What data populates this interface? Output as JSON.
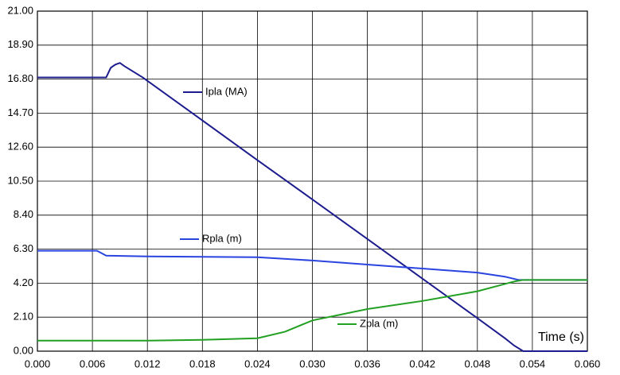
{
  "chart_data": {
    "type": "line",
    "xlabel": "Time (s)",
    "grid": true,
    "xlim": [
      0,
      0.06
    ],
    "ylim": [
      0,
      21
    ],
    "xticks": [
      {
        "value": 0,
        "label": "0.000"
      },
      {
        "value": 0.006,
        "label": "0.006"
      },
      {
        "value": 0.012,
        "label": "0.012"
      },
      {
        "value": 0.018,
        "label": "0.018"
      },
      {
        "value": 0.024,
        "label": "0.024"
      },
      {
        "value": 0.03,
        "label": "0.030"
      },
      {
        "value": 0.036,
        "label": "0.036"
      },
      {
        "value": 0.042,
        "label": "0.042"
      },
      {
        "value": 0.048,
        "label": "0.048"
      },
      {
        "value": 0.054,
        "label": "0.054"
      },
      {
        "value": 0.06,
        "label": "0.060"
      }
    ],
    "yticks": [
      {
        "value": 0,
        "label": "0.00"
      },
      {
        "value": 2.1,
        "label": "2.10"
      },
      {
        "value": 4.2,
        "label": "4.20"
      },
      {
        "value": 6.3,
        "label": "6.30"
      },
      {
        "value": 8.4,
        "label": "8.40"
      },
      {
        "value": 10.5,
        "label": "10.50"
      },
      {
        "value": 12.6,
        "label": "12.60"
      },
      {
        "value": 14.7,
        "label": "14.70"
      },
      {
        "value": 16.8,
        "label": "16.80"
      },
      {
        "value": 18.9,
        "label": "18.90"
      },
      {
        "value": 21,
        "label": "21.00"
      }
    ],
    "series": [
      {
        "name": "Ipla (MA)",
        "color": "#1c1c8e",
        "x": [
          0,
          0.0075,
          0.008,
          0.0085,
          0.009,
          0.0095,
          0.0115,
          0.018,
          0.024,
          0.03,
          0.036,
          0.042,
          0.048,
          0.051,
          0.052,
          0.053,
          0.06
        ],
        "values": [
          16.9,
          16.9,
          17.5,
          17.7,
          17.8,
          17.6,
          16.9,
          14.25,
          11.8,
          9.37,
          6.93,
          4.48,
          2.04,
          0.8,
          0.35,
          0,
          0
        ]
      },
      {
        "name": "Rpla (m)",
        "color": "#2a44e0",
        "x": [
          0,
          0.0065,
          0.0075,
          0.012,
          0.024,
          0.03,
          0.036,
          0.042,
          0.048,
          0.051,
          0.0525,
          0.06
        ],
        "values": [
          6.2,
          6.2,
          5.9,
          5.85,
          5.8,
          5.6,
          5.35,
          5.1,
          4.85,
          4.6,
          4.4,
          4.4
        ]
      },
      {
        "name": "Zpla (m)",
        "color": "#22a022",
        "x": [
          0,
          0.012,
          0.018,
          0.024,
          0.027,
          0.03,
          0.036,
          0.042,
          0.048,
          0.052,
          0.053,
          0.06
        ],
        "values": [
          0.65,
          0.65,
          0.7,
          0.8,
          1.2,
          1.9,
          2.6,
          3.1,
          3.7,
          4.3,
          4.4,
          4.4
        ]
      }
    ]
  }
}
